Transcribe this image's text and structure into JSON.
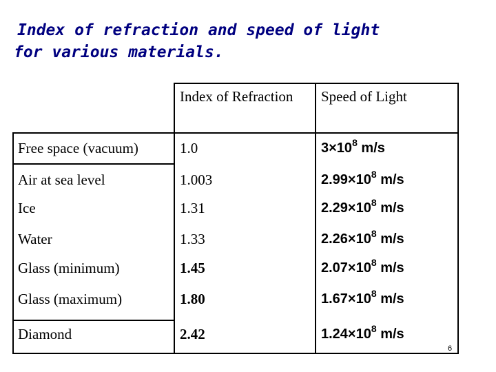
{
  "title": {
    "line1": "Index of refraction and speed of light",
    "line2": "for various materials."
  },
  "table": {
    "headers": [
      "Index of Refraction",
      "Speed of Light"
    ],
    "rows": [
      {
        "material": "Free space (vacuum)",
        "index": "1.0",
        "speed_mantissa": "3×10",
        "speed_exp": "8",
        "speed_unit": " m/s"
      },
      {
        "material": "Air at sea level",
        "index": "1.003",
        "speed_mantissa": "2.99×10",
        "speed_exp": "8",
        "speed_unit": " m/s"
      },
      {
        "material": "Ice",
        "index": "1.31",
        "speed_mantissa": "2.29×10",
        "speed_exp": "8",
        "speed_unit": " m/s"
      },
      {
        "material": "Water",
        "index": "1.33",
        "speed_mantissa": "2.26×10",
        "speed_exp": "8",
        "speed_unit": " m/s"
      },
      {
        "material": "Glass (minimum)",
        "index": "1.45",
        "speed_mantissa": "2.07×10",
        "speed_exp": "8",
        "speed_unit": " m/s"
      },
      {
        "material": "Glass (maximum)",
        "index": "1.80",
        "speed_mantissa": "1.67×10",
        "speed_exp": "8",
        "speed_unit": " m/s"
      },
      {
        "material": "Diamond",
        "index": "2.42",
        "speed_mantissa": "1.24×10",
        "speed_exp": "8",
        "speed_unit": " m/s"
      }
    ]
  },
  "page_number": "6",
  "colors": {
    "title": "#000080",
    "text": "#000000"
  }
}
